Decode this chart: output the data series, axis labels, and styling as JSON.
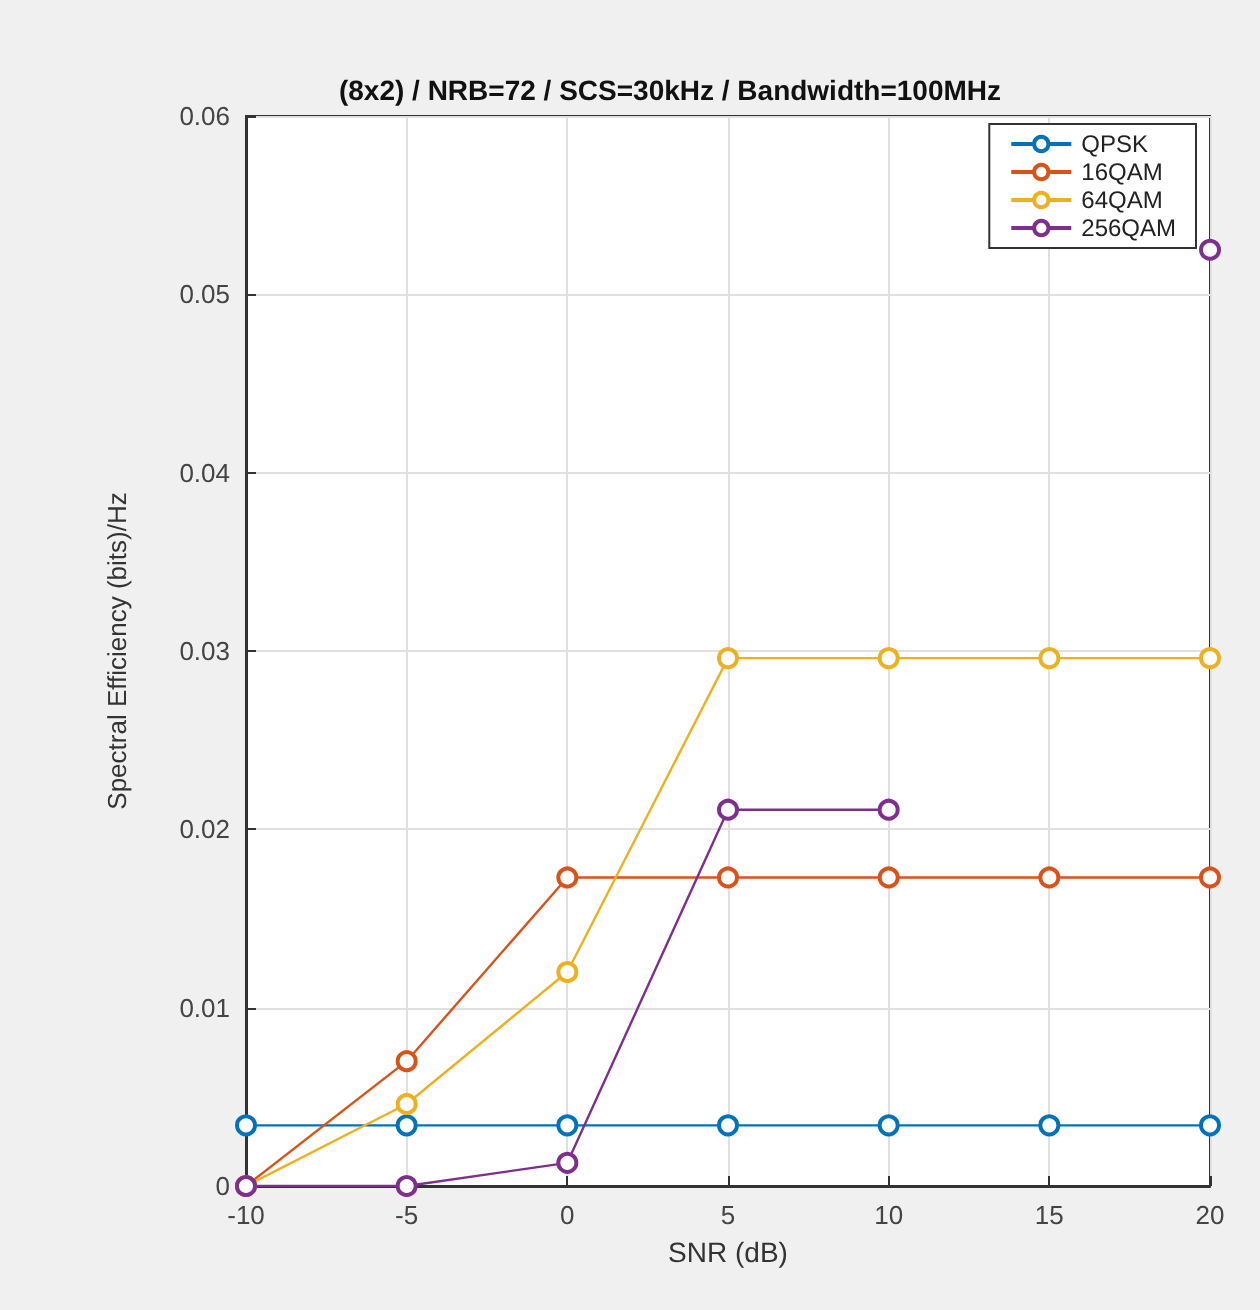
{
  "chart_data": {
    "type": "line",
    "title": "(8x2) / NRB=72 / SCS=30kHz / Bandwidth=100MHz",
    "xlabel": "SNR (dB)",
    "ylabel": "Spectral Efficiency (bits)/Hz",
    "x": [
      -10,
      -5,
      0,
      5,
      10,
      15,
      20
    ],
    "series": [
      {
        "name": "QPSK",
        "color": "#0072bd",
        "values": [
          0.0034,
          0.0034,
          0.0034,
          0.0034,
          0.0034,
          0.0034,
          0.0034
        ]
      },
      {
        "name": "16QAM",
        "color": "#d95319",
        "values": [
          0,
          0.007,
          0.0173,
          0.0173,
          0.0173,
          0.0173,
          0.0173
        ]
      },
      {
        "name": "64QAM",
        "color": "#edb120",
        "values": [
          0,
          0.0046,
          0.012,
          0.0296,
          0.0296,
          0.0296,
          0.0296
        ]
      },
      {
        "name": "256QAM",
        "color": "#7e2f8e",
        "values": [
          0,
          0,
          0.0013,
          0.0211,
          0.0211,
          null,
          0.0525
        ]
      }
    ],
    "xlim": [
      -10,
      20
    ],
    "xticks": [
      -10,
      -5,
      0,
      5,
      10,
      15,
      20
    ],
    "ylim": [
      0,
      0.06
    ],
    "yticks": [
      0,
      0.01,
      0.02,
      0.03,
      0.04,
      0.05,
      0.06
    ],
    "grid": true,
    "legend": "top right",
    "marker": "circle",
    "line_style": "solid"
  }
}
